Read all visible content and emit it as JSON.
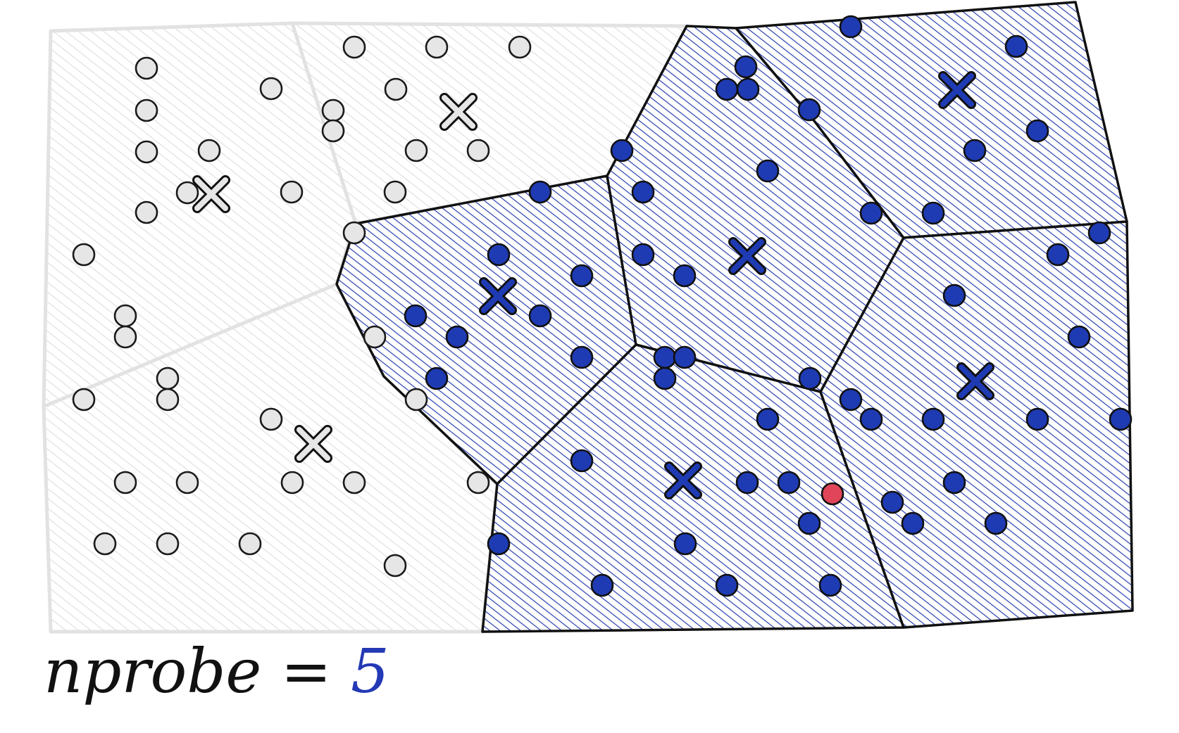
{
  "caption": {
    "label": "nprobe = ",
    "value": "5"
  },
  "colors": {
    "active_cell_hatch": "#2b3fae",
    "inactive_cell_hatch": "#d6d6d6",
    "active_point": "#1f3bb3",
    "inactive_point": "#e6e6e6",
    "query_point": "#e0455a",
    "outline": "#111111"
  },
  "probed_cells": 5,
  "icons": {
    "centroid": "x-mark",
    "vector": "circle",
    "query": "circle"
  }
}
